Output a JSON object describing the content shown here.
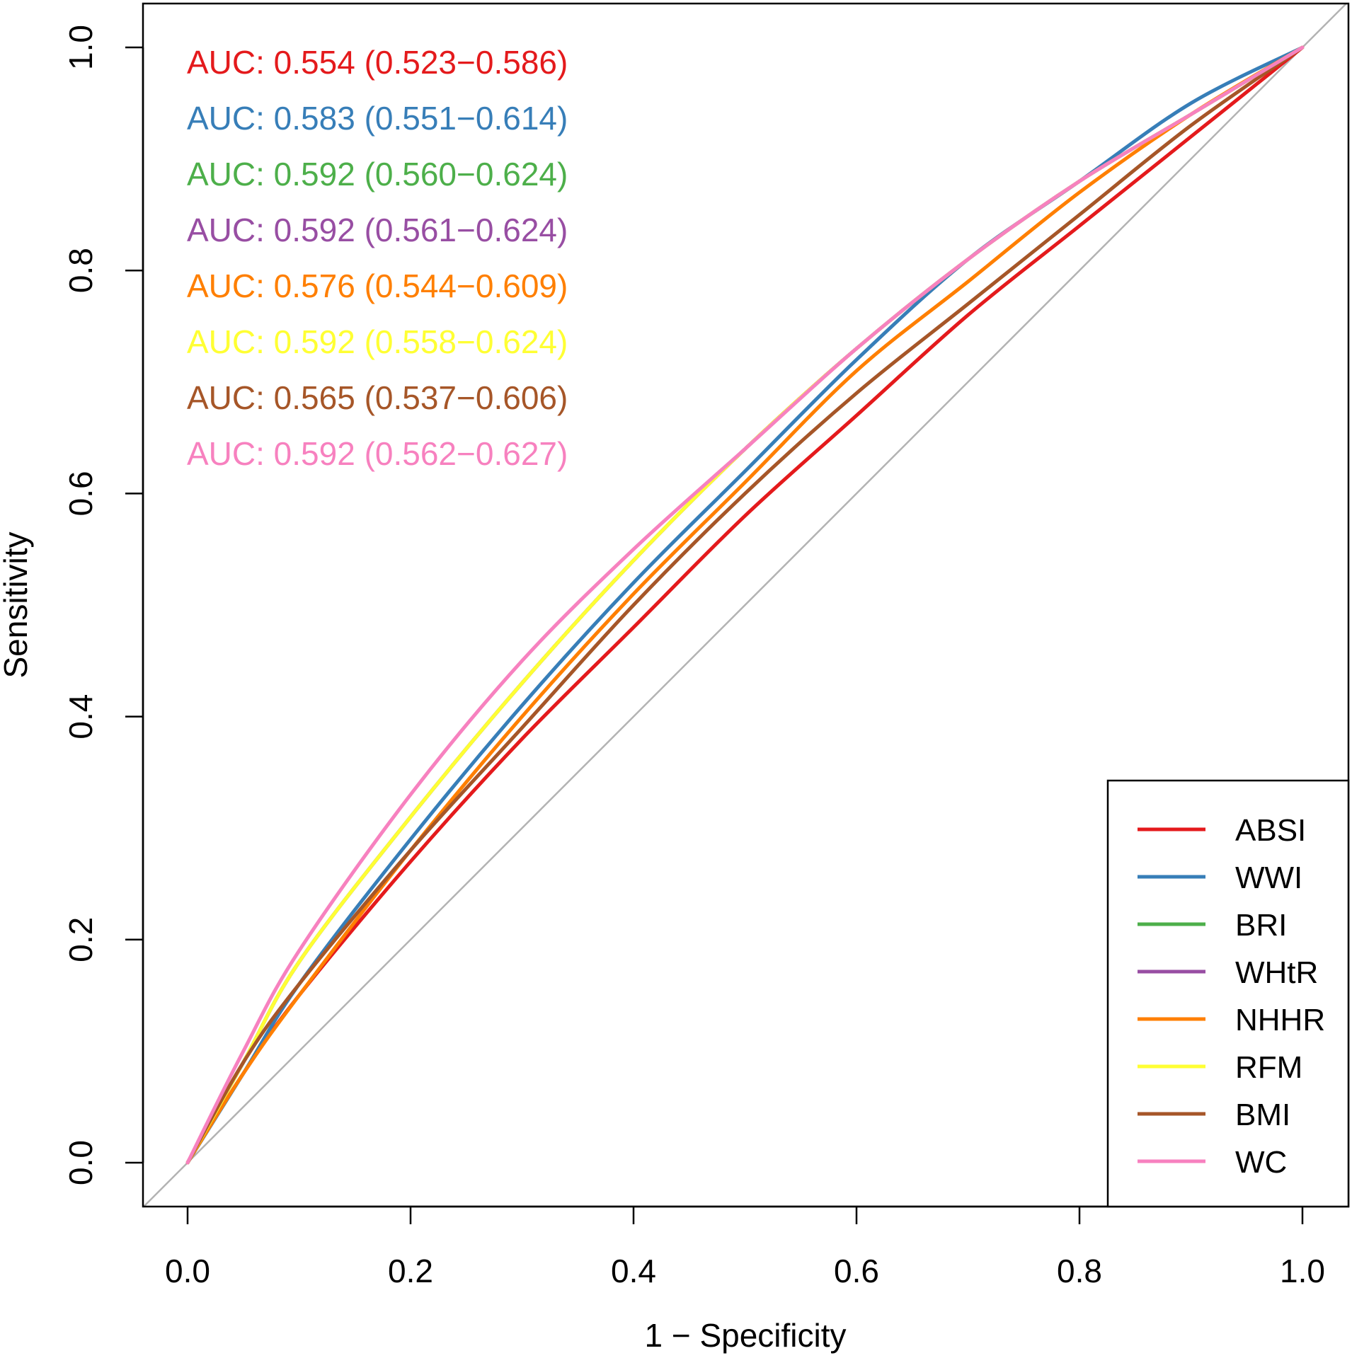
{
  "chart_data": {
    "type": "line",
    "title": "",
    "xlabel": "1 − Specificity",
    "ylabel": "Sensitivity",
    "xlim": [
      0,
      1
    ],
    "ylim": [
      0,
      1
    ],
    "xticks": [
      "0.0",
      "0.2",
      "0.4",
      "0.6",
      "0.8",
      "1.0"
    ],
    "yticks": [
      "0.0",
      "0.2",
      "0.4",
      "0.6",
      "0.8",
      "1.0"
    ],
    "reference_line": {
      "from": [
        0,
        0
      ],
      "to": [
        1,
        1
      ],
      "color": "#b3b3b3"
    },
    "legend_position": "bottom-right",
    "series": [
      {
        "name": "ABSI",
        "color": "#e41a1c",
        "auc_text": "AUC: 0.554 (0.523−0.586)",
        "x": [
          0,
          0.05,
          0.1,
          0.2,
          0.3,
          0.4,
          0.5,
          0.6,
          0.7,
          0.8,
          0.9,
          1.0
        ],
        "y": [
          0,
          0.08,
          0.15,
          0.27,
          0.38,
          0.48,
          0.58,
          0.67,
          0.76,
          0.84,
          0.92,
          1.0
        ]
      },
      {
        "name": "WWI",
        "color": "#377eb8",
        "auc_text": "AUC: 0.583 (0.551−0.614)",
        "x": [
          0,
          0.05,
          0.1,
          0.2,
          0.3,
          0.4,
          0.5,
          0.6,
          0.7,
          0.8,
          0.9,
          1.0
        ],
        "y": [
          0,
          0.08,
          0.16,
          0.29,
          0.41,
          0.52,
          0.62,
          0.72,
          0.81,
          0.88,
          0.95,
          1.0
        ]
      },
      {
        "name": "BRI",
        "color": "#4daf4a",
        "auc_text": "AUC: 0.592 (0.560−0.624)",
        "x": [
          0,
          0.05,
          0.1,
          0.2,
          0.3,
          0.4,
          0.5,
          0.6,
          0.7,
          0.8,
          0.9,
          1.0
        ],
        "y": [
          0,
          0.09,
          0.18,
          0.31,
          0.43,
          0.54,
          0.64,
          0.73,
          0.81,
          0.88,
          0.94,
          1.0
        ]
      },
      {
        "name": "WHtR",
        "color": "#984ea3",
        "auc_text": "AUC: 0.592 (0.561−0.624)",
        "x": [
          0,
          0.05,
          0.1,
          0.2,
          0.3,
          0.4,
          0.5,
          0.6,
          0.7,
          0.8,
          0.9,
          1.0
        ],
        "y": [
          0,
          0.09,
          0.18,
          0.31,
          0.43,
          0.54,
          0.64,
          0.73,
          0.81,
          0.88,
          0.94,
          1.0
        ]
      },
      {
        "name": "NHHR",
        "color": "#ff7f00",
        "auc_text": "AUC: 0.576 (0.544−0.609)",
        "x": [
          0,
          0.05,
          0.1,
          0.2,
          0.3,
          0.4,
          0.5,
          0.6,
          0.7,
          0.8,
          0.9,
          1.0
        ],
        "y": [
          0,
          0.08,
          0.15,
          0.28,
          0.4,
          0.51,
          0.61,
          0.71,
          0.79,
          0.87,
          0.94,
          1.0
        ]
      },
      {
        "name": "RFM",
        "color": "#ffff33",
        "auc_text": "AUC: 0.592 (0.558−0.624)",
        "x": [
          0,
          0.05,
          0.1,
          0.2,
          0.3,
          0.4,
          0.5,
          0.6,
          0.7,
          0.8,
          0.9,
          1.0
        ],
        "y": [
          0,
          0.09,
          0.18,
          0.31,
          0.43,
          0.54,
          0.64,
          0.73,
          0.81,
          0.88,
          0.94,
          1.0
        ]
      },
      {
        "name": "BMI",
        "color": "#a65628",
        "auc_text": "AUC: 0.565 (0.537−0.606)",
        "x": [
          0,
          0.05,
          0.1,
          0.2,
          0.3,
          0.4,
          0.5,
          0.6,
          0.7,
          0.8,
          0.9,
          1.0
        ],
        "y": [
          0,
          0.09,
          0.16,
          0.28,
          0.39,
          0.5,
          0.6,
          0.69,
          0.77,
          0.85,
          0.93,
          1.0
        ]
      },
      {
        "name": "WC",
        "color": "#f781bf",
        "auc_text": "AUC: 0.592 (0.562−0.627)",
        "x": [
          0,
          0.05,
          0.1,
          0.2,
          0.3,
          0.4,
          0.5,
          0.6,
          0.7,
          0.8,
          0.9,
          1.0
        ],
        "y": [
          0,
          0.1,
          0.19,
          0.33,
          0.45,
          0.55,
          0.64,
          0.73,
          0.81,
          0.88,
          0.94,
          1.0
        ]
      }
    ]
  }
}
